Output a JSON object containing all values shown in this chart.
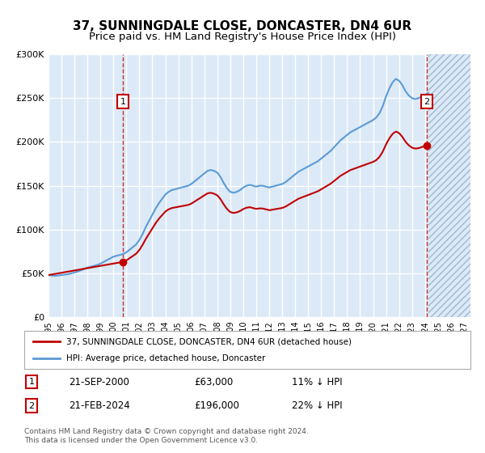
{
  "title": "37, SUNNINGDALE CLOSE, DONCASTER, DN4 6UR",
  "subtitle": "Price paid vs. HM Land Registry's House Price Index (HPI)",
  "title_fontsize": 11,
  "subtitle_fontsize": 9.5,
  "background_color": "#dce9f7",
  "hatch_color": "#c0d0e8",
  "grid_color": "#ffffff",
  "xmin": 1995.0,
  "xmax": 2027.5,
  "ymin": 0,
  "ymax": 300000,
  "yticks": [
    0,
    50000,
    100000,
    150000,
    200000,
    250000,
    300000
  ],
  "ytick_labels": [
    "£0",
    "£50K",
    "£100K",
    "£150K",
    "£200K",
    "£250K",
    "£300K"
  ],
  "xticks": [
    1995,
    1996,
    1997,
    1998,
    1999,
    2000,
    2001,
    2002,
    2003,
    2004,
    2005,
    2006,
    2007,
    2008,
    2009,
    2010,
    2011,
    2012,
    2013,
    2014,
    2015,
    2016,
    2017,
    2018,
    2019,
    2020,
    2021,
    2022,
    2023,
    2024,
    2025,
    2026,
    2027
  ],
  "transaction1_x": 2000.72,
  "transaction1_y": 63000,
  "transaction1_label": "1",
  "transaction1_date": "21-SEP-2000",
  "transaction1_price": "£63,000",
  "transaction1_hpi": "11% ↓ HPI",
  "transaction2_x": 2024.13,
  "transaction2_y": 196000,
  "transaction2_label": "2",
  "transaction2_date": "21-FEB-2024",
  "transaction2_price": "£196,000",
  "transaction2_hpi": "22% ↓ HPI",
  "hpi_color": "#5b9bd5",
  "sale_color": "#c00000",
  "sale_marker_color": "#c00000",
  "legend_label_sale": "37, SUNNINGDALE CLOSE, DONCASTER, DN4 6UR (detached house)",
  "legend_label_hpi": "HPI: Average price, detached house, Doncaster",
  "footer_text": "Contains HM Land Registry data © Crown copyright and database right 2024.\nThis data is licensed under the Open Government Licence v3.0.",
  "hpi_data_x": [
    1995.0,
    1995.25,
    1995.5,
    1995.75,
    1996.0,
    1996.25,
    1996.5,
    1996.75,
    1997.0,
    1997.25,
    1997.5,
    1997.75,
    1998.0,
    1998.25,
    1998.5,
    1998.75,
    1999.0,
    1999.25,
    1999.5,
    1999.75,
    2000.0,
    2000.25,
    2000.5,
    2000.75,
    2001.0,
    2001.25,
    2001.5,
    2001.75,
    2002.0,
    2002.25,
    2002.5,
    2002.75,
    2003.0,
    2003.25,
    2003.5,
    2003.75,
    2004.0,
    2004.25,
    2004.5,
    2004.75,
    2005.0,
    2005.25,
    2005.5,
    2005.75,
    2006.0,
    2006.25,
    2006.5,
    2006.75,
    2007.0,
    2007.25,
    2007.5,
    2007.75,
    2008.0,
    2008.25,
    2008.5,
    2008.75,
    2009.0,
    2009.25,
    2009.5,
    2009.75,
    2010.0,
    2010.25,
    2010.5,
    2010.75,
    2011.0,
    2011.25,
    2011.5,
    2011.75,
    2012.0,
    2012.25,
    2012.5,
    2012.75,
    2013.0,
    2013.25,
    2013.5,
    2013.75,
    2014.0,
    2014.25,
    2014.5,
    2014.75,
    2015.0,
    2015.25,
    2015.5,
    2015.75,
    2016.0,
    2016.25,
    2016.5,
    2016.75,
    2017.0,
    2017.25,
    2017.5,
    2017.75,
    2018.0,
    2018.25,
    2018.5,
    2018.75,
    2019.0,
    2019.25,
    2019.5,
    2019.75,
    2020.0,
    2020.25,
    2020.5,
    2020.75,
    2021.0,
    2021.25,
    2021.5,
    2021.75,
    2022.0,
    2022.25,
    2022.5,
    2022.75,
    2023.0,
    2023.25,
    2023.5,
    2023.75,
    2024.0,
    2024.25
  ],
  "hpi_data_y": [
    48000,
    47500,
    47000,
    47500,
    48000,
    48500,
    49000,
    50000,
    51000,
    52000,
    53500,
    55000,
    56500,
    57500,
    58500,
    59500,
    61000,
    63000,
    65000,
    67000,
    69000,
    70000,
    71000,
    72000,
    74000,
    77000,
    80000,
    83000,
    88000,
    95000,
    103000,
    110000,
    117000,
    124000,
    130000,
    135000,
    140000,
    143000,
    145000,
    146000,
    147000,
    148000,
    149000,
    150000,
    152000,
    155000,
    158000,
    161000,
    164000,
    167000,
    168000,
    167000,
    165000,
    160000,
    153000,
    147000,
    143000,
    142000,
    143000,
    145000,
    148000,
    150000,
    151000,
    150000,
    149000,
    150000,
    150000,
    149000,
    148000,
    149000,
    150000,
    151000,
    152000,
    154000,
    157000,
    160000,
    163000,
    166000,
    168000,
    170000,
    172000,
    174000,
    176000,
    178000,
    181000,
    184000,
    187000,
    190000,
    194000,
    198000,
    202000,
    205000,
    208000,
    211000,
    213000,
    215000,
    217000,
    219000,
    221000,
    223000,
    225000,
    228000,
    233000,
    241000,
    252000,
    261000,
    268000,
    272000,
    270000,
    265000,
    258000,
    253000,
    250000,
    249000,
    250000,
    252000,
    254000,
    256000
  ],
  "sale_line_x": [
    1995.0,
    2000.72,
    2024.13
  ],
  "sale_line_y": [
    48000,
    63000,
    196000
  ],
  "future_start_x": 2024.25
}
